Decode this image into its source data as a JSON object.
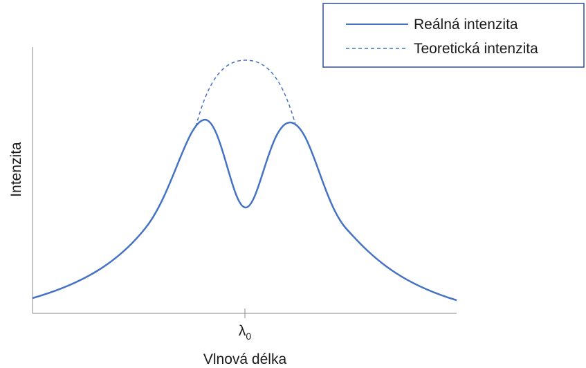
{
  "legend": {
    "items": [
      {
        "label": "Reálná intenzita"
      },
      {
        "label": "Teoretická intenzita"
      }
    ]
  },
  "axes": {
    "y_label": "Intenzita",
    "x_label": "Vlnová délka",
    "x_tick": {
      "symbol": "λ",
      "subscript": "0"
    }
  }
}
